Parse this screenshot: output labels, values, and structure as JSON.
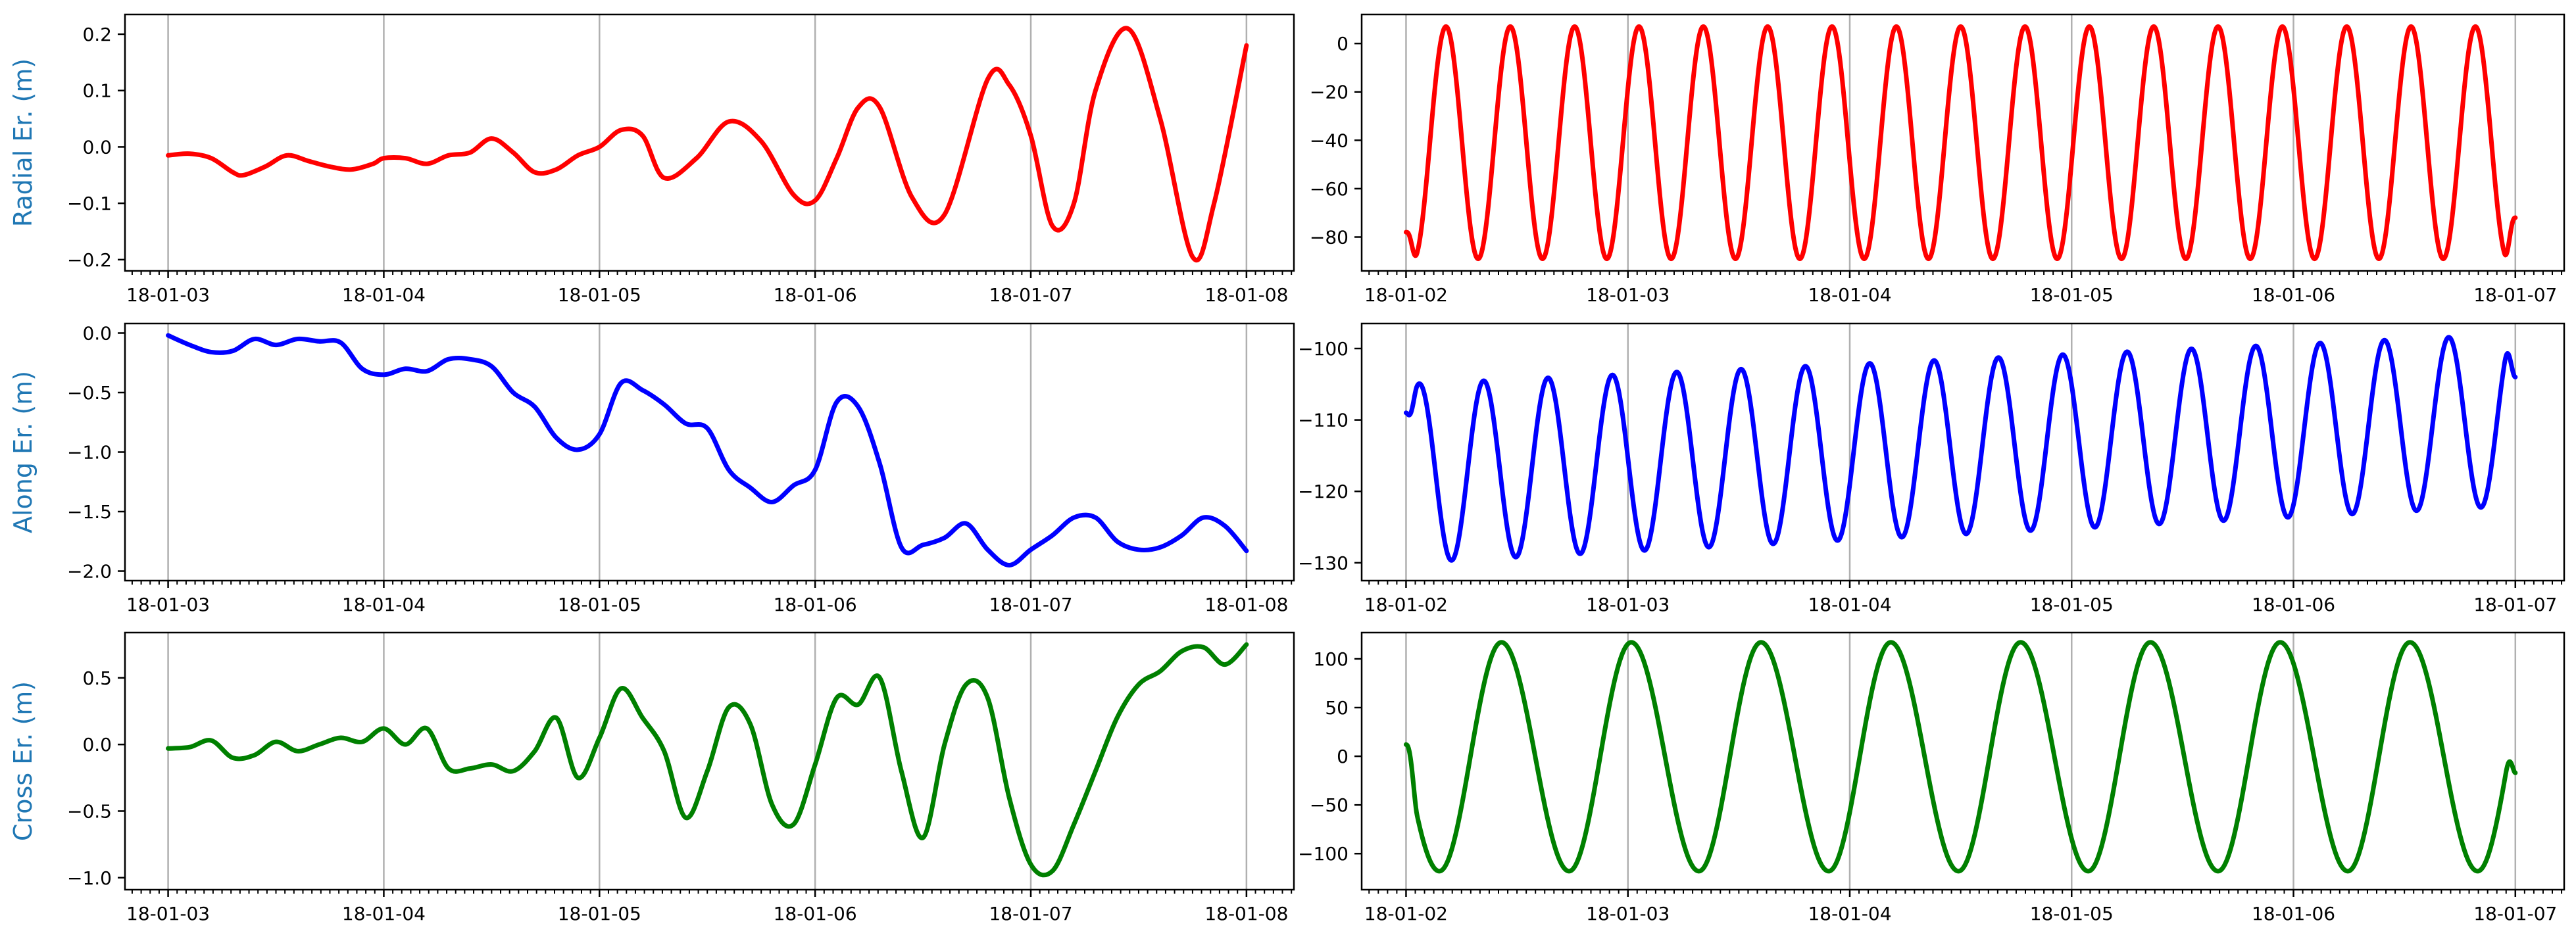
{
  "figure": {
    "accent": "#1f77b4",
    "grid_color": "#b0b0b0",
    "frame_color": "#000000"
  },
  "chart_data": [
    {
      "type": "line",
      "ylabel": "Radial Er. (m)",
      "color": "#ff0000",
      "ylim": [
        -0.22,
        0.235
      ],
      "yticks": [
        -0.2,
        -0.1,
        0.0,
        0.1,
        0.2
      ],
      "ytick_labels": [
        "−0.2",
        "−0.1",
        "0.0",
        "0.1",
        "0.2"
      ],
      "xlim": [
        -0.2,
        5.22
      ],
      "xticks": [
        0,
        1,
        2,
        3,
        4,
        5
      ],
      "xtick_labels": [
        "18-01-03",
        "18-01-04",
        "18-01-05",
        "18-01-06",
        "18-01-07",
        "18-01-08"
      ],
      "minor_per_day": 24,
      "x": [
        0,
        0.1,
        0.2,
        0.3,
        0.35,
        0.45,
        0.55,
        0.65,
        0.75,
        0.85,
        0.95,
        1.0,
        1.1,
        1.2,
        1.3,
        1.4,
        1.5,
        1.6,
        1.7,
        1.8,
        1.9,
        2.0,
        2.1,
        2.2,
        2.3,
        2.45,
        2.6,
        2.75,
        2.9,
        3.0,
        3.1,
        3.2,
        3.3,
        3.45,
        3.6,
        3.8,
        3.9,
        4.0,
        4.1,
        4.2,
        4.3,
        4.45,
        4.6,
        4.75,
        4.85,
        5.0
      ],
      "y": [
        -0.015,
        -0.012,
        -0.02,
        -0.045,
        -0.05,
        -0.035,
        -0.015,
        -0.025,
        -0.035,
        -0.04,
        -0.03,
        -0.02,
        -0.02,
        -0.03,
        -0.015,
        -0.01,
        0.015,
        -0.01,
        -0.045,
        -0.04,
        -0.015,
        0.0,
        0.03,
        0.02,
        -0.055,
        -0.02,
        0.045,
        0.01,
        -0.085,
        -0.095,
        -0.02,
        0.07,
        0.07,
        -0.09,
        -0.12,
        0.12,
        0.11,
        0.02,
        -0.14,
        -0.1,
        0.1,
        0.21,
        0.05,
        -0.195,
        -0.1,
        0.18
      ]
    },
    {
      "type": "line",
      "color": "#ff0000",
      "ylim": [
        -94,
        12
      ],
      "yticks": [
        -80,
        -60,
        -40,
        -20,
        0
      ],
      "ytick_labels": [
        "−80",
        "−60",
        "−40",
        "−20",
        "0"
      ],
      "xlim": [
        -0.2,
        5.22
      ],
      "xticks": [
        0,
        1,
        2,
        3,
        4,
        5
      ],
      "xtick_labels": [
        "18-01-02",
        "18-01-03",
        "18-01-04",
        "18-01-05",
        "18-01-06",
        "18-01-07"
      ],
      "minor_per_day": 24,
      "wave": {
        "offset": -41,
        "amplitude": 48,
        "min": -89,
        "max": 7,
        "period_days": 0.29,
        "first_max_day": 0.18,
        "start_value": -78,
        "end_value": -72
      }
    },
    {
      "type": "line",
      "ylabel": "Along Er. (m)",
      "color": "#0000ff",
      "ylim": [
        -2.08,
        0.08
      ],
      "yticks": [
        -2.0,
        -1.5,
        -1.0,
        -0.5,
        0.0
      ],
      "ytick_labels": [
        "−2.0",
        "−1.5",
        "−1.0",
        "−0.5",
        "0.0"
      ],
      "xlim": [
        -0.2,
        5.22
      ],
      "xticks": [
        0,
        1,
        2,
        3,
        4,
        5
      ],
      "xtick_labels": [
        "18-01-03",
        "18-01-04",
        "18-01-05",
        "18-01-06",
        "18-01-07",
        "18-01-08"
      ],
      "minor_per_day": 24,
      "x": [
        0,
        0.1,
        0.2,
        0.3,
        0.4,
        0.5,
        0.6,
        0.7,
        0.8,
        0.9,
        1.0,
        1.1,
        1.2,
        1.3,
        1.4,
        1.5,
        1.6,
        1.7,
        1.8,
        1.9,
        2.0,
        2.1,
        2.2,
        2.3,
        2.4,
        2.5,
        2.6,
        2.7,
        2.8,
        2.9,
        3.0,
        3.1,
        3.2,
        3.3,
        3.4,
        3.5,
        3.6,
        3.7,
        3.8,
        3.9,
        4.0,
        4.1,
        4.2,
        4.3,
        4.4,
        4.5,
        4.6,
        4.7,
        4.8,
        4.9,
        5.0
      ],
      "y": [
        -0.02,
        -0.1,
        -0.16,
        -0.15,
        -0.05,
        -0.1,
        -0.05,
        -0.07,
        -0.08,
        -0.3,
        -0.35,
        -0.3,
        -0.32,
        -0.22,
        -0.22,
        -0.28,
        -0.5,
        -0.62,
        -0.88,
        -0.98,
        -0.85,
        -0.42,
        -0.48,
        -0.6,
        -0.76,
        -0.8,
        -1.15,
        -1.3,
        -1.42,
        -1.28,
        -1.15,
        -0.58,
        -0.62,
        -1.1,
        -1.8,
        -1.78,
        -1.72,
        -1.6,
        -1.82,
        -1.95,
        -1.82,
        -1.7,
        -1.55,
        -1.55,
        -1.75,
        -1.82,
        -1.8,
        -1.7,
        -1.55,
        -1.62,
        -1.83
      ]
    },
    {
      "type": "line",
      "color": "#0000ff",
      "ylim": [
        -132.5,
        -96.5
      ],
      "yticks": [
        -130,
        -120,
        -110,
        -100
      ],
      "ytick_labels": [
        "−130",
        "−120",
        "−110",
        "−100"
      ],
      "xlim": [
        -0.2,
        5.22
      ],
      "xticks": [
        0,
        1,
        2,
        3,
        4,
        5
      ],
      "xtick_labels": [
        "18-01-02",
        "18-01-03",
        "18-01-04",
        "18-01-05",
        "18-01-06",
        "18-01-07"
      ],
      "minor_per_day": 24,
      "wave": {
        "max_start": -105,
        "max_end": -98,
        "min_start": -130,
        "min_end": -122,
        "period_days": 0.29,
        "first_max_day": 0.06,
        "start_value": -109,
        "end_value": -104
      }
    },
    {
      "type": "line",
      "ylabel": "Cross Er. (m)",
      "color": "#008000",
      "ylim": [
        -1.09,
        0.84
      ],
      "yticks": [
        -1.0,
        -0.5,
        0.0,
        0.5
      ],
      "ytick_labels": [
        "−1.0",
        "−0.5",
        "0.0",
        "0.5"
      ],
      "xlim": [
        -0.2,
        5.22
      ],
      "xticks": [
        0,
        1,
        2,
        3,
        4,
        5
      ],
      "xtick_labels": [
        "18-01-03",
        "18-01-04",
        "18-01-05",
        "18-01-06",
        "18-01-07",
        "18-01-08"
      ],
      "minor_per_day": 24,
      "x": [
        0,
        0.1,
        0.2,
        0.3,
        0.4,
        0.5,
        0.6,
        0.7,
        0.8,
        0.9,
        1.0,
        1.1,
        1.2,
        1.3,
        1.4,
        1.5,
        1.6,
        1.7,
        1.8,
        1.9,
        2.0,
        2.1,
        2.2,
        2.3,
        2.4,
        2.5,
        2.6,
        2.7,
        2.8,
        2.9,
        3.0,
        3.1,
        3.2,
        3.3,
        3.4,
        3.5,
        3.6,
        3.7,
        3.8,
        3.9,
        4.0,
        4.1,
        4.2,
        4.3,
        4.4,
        4.5,
        4.6,
        4.7,
        4.8,
        4.9,
        5.0
      ],
      "y": [
        -0.03,
        -0.02,
        0.03,
        -0.1,
        -0.08,
        0.02,
        -0.05,
        0.0,
        0.05,
        0.02,
        0.12,
        0.0,
        0.12,
        -0.18,
        -0.18,
        -0.15,
        -0.2,
        -0.05,
        0.2,
        -0.25,
        0.05,
        0.42,
        0.2,
        -0.05,
        -0.55,
        -0.2,
        0.28,
        0.15,
        -0.45,
        -0.6,
        -0.15,
        0.35,
        0.3,
        0.5,
        -0.2,
        -0.7,
        0.0,
        0.45,
        0.35,
        -0.4,
        -0.9,
        -0.95,
        -0.6,
        -0.2,
        0.2,
        0.45,
        0.55,
        0.7,
        0.73,
        0.6,
        0.75
      ]
    },
    {
      "type": "line",
      "color": "#008000",
      "ylim": [
        -137,
        127
      ],
      "yticks": [
        -100,
        -50,
        0,
        50,
        100
      ],
      "ytick_labels": [
        "−100",
        "−50",
        "0",
        "50",
        "100"
      ],
      "xlim": [
        -0.2,
        5.22
      ],
      "xticks": [
        0,
        1,
        2,
        3,
        4,
        5
      ],
      "xtick_labels": [
        "18-01-02",
        "18-01-03",
        "18-01-04",
        "18-01-05",
        "18-01-06",
        "18-01-07"
      ],
      "minor_per_day": 24,
      "wave": {
        "min": -118,
        "max": 117,
        "period_days": 0.585,
        "first_max_day": 0.43,
        "first_min_day": 0.15,
        "start_value": 12,
        "end_value": -17
      }
    }
  ]
}
